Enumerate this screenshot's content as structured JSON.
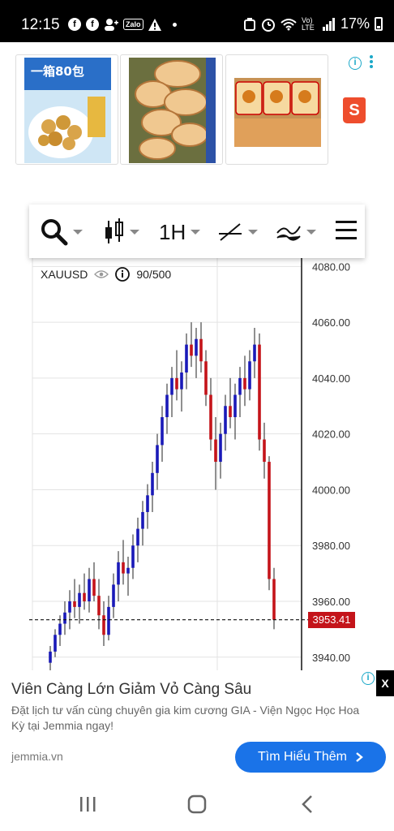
{
  "status_bar": {
    "time": "12:15",
    "battery": "17%",
    "network": "Vo) LTE",
    "zalo": "Zalo"
  },
  "ad_top": {
    "product_1_text": "一箱80包",
    "shopee_letter": "S",
    "info_icon": "info-icon"
  },
  "chart_header": {
    "timeframe": "1H",
    "symbol": "XAUUSD",
    "indicator_count": "90/500"
  },
  "chart_data": {
    "type": "candlestick",
    "symbol": "XAUUSD",
    "timeframe": "1H",
    "y_ticks": [
      "4080.00",
      "4060.00",
      "4040.00",
      "4020.00",
      "4000.00",
      "3980.00",
      "3960.00",
      "3940.00"
    ],
    "ylim": [
      3935,
      4083
    ],
    "last_price": "3953.41",
    "colors": {
      "up": "#1a1ab8",
      "down": "#c4141a"
    },
    "candles": [
      [
        3938,
        3944,
        3934,
        3942
      ],
      [
        3942,
        3950,
        3940,
        3948
      ],
      [
        3948,
        3955,
        3944,
        3952
      ],
      [
        3952,
        3960,
        3948,
        3956
      ],
      [
        3956,
        3964,
        3950,
        3960
      ],
      [
        3960,
        3968,
        3954,
        3958
      ],
      [
        3958,
        3966,
        3952,
        3963
      ],
      [
        3963,
        3970,
        3957,
        3960
      ],
      [
        3960,
        3972,
        3956,
        3968
      ],
      [
        3968,
        3974,
        3960,
        3962
      ],
      [
        3962,
        3968,
        3950,
        3955
      ],
      [
        3955,
        3960,
        3944,
        3948
      ],
      [
        3948,
        3962,
        3946,
        3958
      ],
      [
        3958,
        3970,
        3954,
        3966
      ],
      [
        3966,
        3978,
        3960,
        3974
      ],
      [
        3974,
        3982,
        3966,
        3970
      ],
      [
        3970,
        3976,
        3962,
        3972
      ],
      [
        3972,
        3984,
        3968,
        3980
      ],
      [
        3980,
        3990,
        3974,
        3986
      ],
      [
        3986,
        3996,
        3980,
        3992
      ],
      [
        3992,
        4002,
        3986,
        3998
      ],
      [
        3998,
        4010,
        3992,
        4006
      ],
      [
        4006,
        4020,
        4000,
        4016
      ],
      [
        4016,
        4030,
        4010,
        4026
      ],
      [
        4026,
        4038,
        4020,
        4034
      ],
      [
        4034,
        4044,
        4026,
        4040
      ],
      [
        4040,
        4050,
        4032,
        4036
      ],
      [
        4036,
        4046,
        4028,
        4042
      ],
      [
        4042,
        4056,
        4036,
        4052
      ],
      [
        4052,
        4060,
        4044,
        4048
      ],
      [
        4048,
        4058,
        4040,
        4054
      ],
      [
        4054,
        4060,
        4042,
        4046
      ],
      [
        4046,
        4050,
        4030,
        4034
      ],
      [
        4034,
        4040,
        4014,
        4018
      ],
      [
        4018,
        4026,
        4000,
        4010
      ],
      [
        4010,
        4024,
        4004,
        4020
      ],
      [
        4020,
        4034,
        4014,
        4030
      ],
      [
        4030,
        4040,
        4022,
        4026
      ],
      [
        4026,
        4038,
        4018,
        4034
      ],
      [
        4034,
        4044,
        4026,
        4040
      ],
      [
        4040,
        4048,
        4030,
        4036
      ],
      [
        4036,
        4050,
        4032,
        4046
      ],
      [
        4046,
        4058,
        4040,
        4052
      ],
      [
        4052,
        4056,
        4014,
        4018
      ],
      [
        4018,
        4024,
        4004,
        4010
      ],
      [
        4010,
        4012,
        3964,
        3968
      ],
      [
        3968,
        3972,
        3950,
        3953.41
      ]
    ]
  },
  "ad_bottom": {
    "title": "Viên Càng Lớn Giảm Vỏ Càng Sâu",
    "description": "Đặt lịch tư vấn cùng chuyên gia kim cương GIA - Viện Ngọc Học Hoa Kỳ tại Jemmia ngay!",
    "domain": "jemmia.vn",
    "cta": "Tìm Hiểu Thêm",
    "close": "X"
  }
}
